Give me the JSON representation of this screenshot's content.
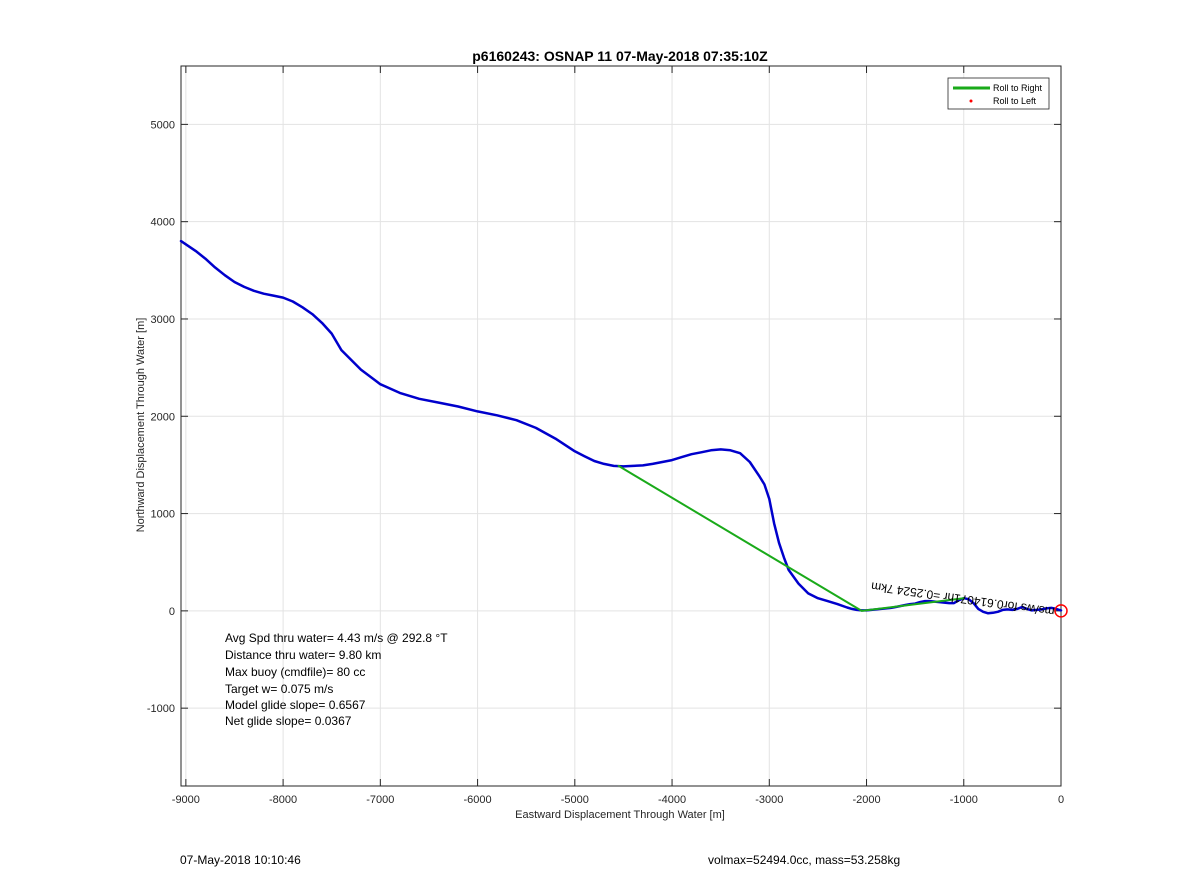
{
  "chart_data": {
    "type": "line",
    "title": "p6160243: OSNAP 11 07-May-2018 07:35:10Z",
    "xlabel": "Eastward Displacement Through Water [m]",
    "ylabel": "Northward Displacement Through Water [m]",
    "xlim": [
      -9050,
      0
    ],
    "ylim": [
      -1800,
      5600
    ],
    "xticks": [
      -9000,
      -8000,
      -7000,
      -6000,
      -5000,
      -4000,
      -3000,
      -2000,
      -1000,
      0
    ],
    "yticks": [
      -1000,
      0,
      1000,
      2000,
      3000,
      4000,
      5000
    ],
    "grid": true,
    "legend": {
      "placement": "top-right",
      "entries": [
        {
          "label": "Roll to Right",
          "color": "#1aaa1a",
          "marker": "line"
        },
        {
          "label": "Roll to Left",
          "color": "#ff0000",
          "marker": "dot"
        }
      ]
    },
    "series": [
      {
        "color": "#0000cc",
        "x": [
          0,
          -50,
          -100,
          -150,
          -200,
          -250,
          -300,
          -350,
          -400,
          -450,
          -500,
          -550,
          -600,
          -650,
          -700,
          -750,
          -800,
          -850,
          -900,
          -950,
          -1000,
          -1050,
          -1100,
          -1150,
          -1200,
          -1250,
          -1300,
          -1350,
          -1400,
          -1450,
          -1500,
          -1550,
          -1600,
          -1650,
          -1700,
          -1750,
          -1800,
          -1850,
          -1900,
          -1950,
          -2000,
          -2050,
          -2100,
          -2150,
          -2200,
          -2300,
          -2400,
          -2500,
          -2600,
          -2700,
          -2800,
          -2850,
          -2900,
          -2950,
          -3000,
          -3050,
          -3100,
          -3200,
          -3300,
          -3400,
          -3500,
          -3600,
          -3700,
          -3800,
          -3900,
          -4000,
          -4100,
          -4200,
          -4300,
          -4400,
          -4500,
          -4600,
          -4700,
          -4800,
          -4900,
          -5000,
          -5200,
          -5400,
          -5600,
          -5800,
          -6000,
          -6200,
          -6400,
          -6600,
          -6800,
          -7000,
          -7200,
          -7400,
          -7500,
          -7600,
          -7700,
          -7800,
          -7900,
          -8000,
          -8100,
          -8200,
          -8300,
          -8400,
          -8500,
          -8600,
          -8700,
          -8800,
          -8900,
          -9050
        ],
        "y": [
          5,
          20,
          30,
          25,
          15,
          10,
          5,
          20,
          40,
          20,
          10,
          15,
          10,
          -10,
          -20,
          -25,
          -10,
          20,
          80,
          120,
          130,
          110,
          80,
          80,
          85,
          90,
          95,
          100,
          100,
          90,
          75,
          70,
          60,
          50,
          40,
          30,
          25,
          20,
          15,
          10,
          5,
          5,
          10,
          20,
          35,
          70,
          100,
          130,
          180,
          280,
          420,
          550,
          700,
          900,
          1150,
          1300,
          1380,
          1530,
          1620,
          1650,
          1660,
          1650,
          1630,
          1610,
          1580,
          1550,
          1530,
          1510,
          1495,
          1490,
          1485,
          1490,
          1510,
          1540,
          1590,
          1640,
          1770,
          1880,
          1960,
          2010,
          2050,
          2100,
          2140,
          2180,
          2240,
          2330,
          2480,
          2680,
          2850,
          2960,
          3050,
          3120,
          3180,
          3220,
          3240,
          3260,
          3290,
          3330,
          3380,
          3450,
          3530,
          3620,
          3700,
          3800
        ]
      },
      {
        "color": "#1aaa1a",
        "x": [
          -4550,
          -2050,
          -1000
        ],
        "y": [
          1490,
          0,
          130
        ]
      }
    ],
    "end_marker": {
      "x": 0,
      "y": 0,
      "color": "#ff0000"
    },
    "annotation": {
      "text": "0.018m/s for0.614071hr =0.252474km",
      "visible_text": "ms/ws for0.614071hr =0.2524 7km"
    }
  },
  "stats": [
    "Avg Spd thru water=  4.43 m/s @ 292.8 °T",
    "Distance thru water=  9.80 km",
    "Max buoy (cmdfile)= 80 cc",
    "Target w= 0.075 m/s",
    "Model glide slope= 0.6567",
    "Net glide slope= 0.0367"
  ],
  "footer": {
    "left": "07-May-2018 10:10:46",
    "right": "volmax=52494.0cc, mass=53.258kg"
  }
}
